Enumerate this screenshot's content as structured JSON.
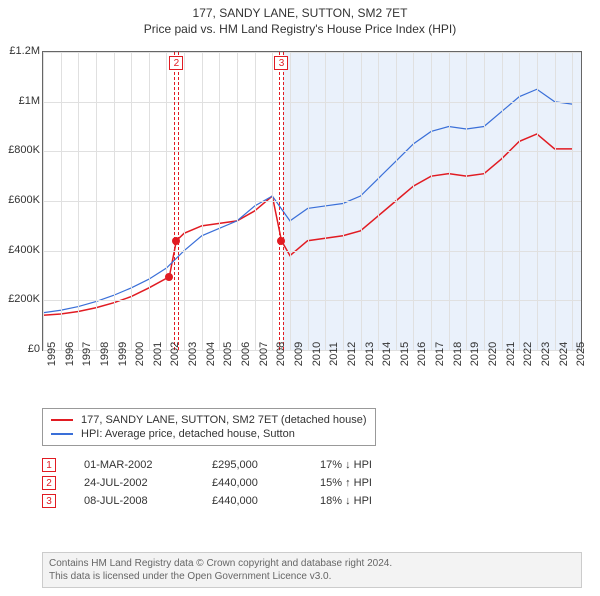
{
  "title": "177, SANDY LANE, SUTTON, SM2 7ET",
  "subtitle": "Price paid vs. HM Land Registry's House Price Index (HPI)",
  "chart": {
    "type": "line",
    "background_color": "#ffffff",
    "grid_color": "#e0e0e0",
    "border_color": "#666666",
    "x": {
      "min": 1995,
      "max": 2025.5,
      "ticks": [
        1995,
        1996,
        1997,
        1998,
        1999,
        2000,
        2001,
        2002,
        2003,
        2004,
        2005,
        2006,
        2007,
        2008,
        2009,
        2010,
        2011,
        2012,
        2013,
        2014,
        2015,
        2016,
        2017,
        2018,
        2019,
        2020,
        2021,
        2022,
        2023,
        2024,
        2025
      ]
    },
    "y": {
      "min": 0,
      "max": 1200000,
      "ticks": [
        0,
        200000,
        400000,
        600000,
        800000,
        1000000,
        1200000
      ],
      "tick_labels": [
        "£0",
        "£200K",
        "£400K",
        "£600K",
        "£800K",
        "£1M",
        "£1.2M"
      ]
    },
    "shaded_region": {
      "from_x": 2008.6,
      "to_x": 2025.5,
      "fill": "#eaf1fb"
    },
    "series": [
      {
        "name": "price_paid",
        "label": "177, SANDY LANE, SUTTON, SM2 7ET (detached house)",
        "color": "#e11b22",
        "line_width": 1.5,
        "points": [
          [
            1995,
            140000
          ],
          [
            1996,
            145000
          ],
          [
            1997,
            155000
          ],
          [
            1998,
            170000
          ],
          [
            1999,
            190000
          ],
          [
            2000,
            215000
          ],
          [
            2001,
            250000
          ],
          [
            2002.16,
            295000
          ],
          [
            2002.56,
            440000
          ],
          [
            2003,
            470000
          ],
          [
            2004,
            500000
          ],
          [
            2005,
            510000
          ],
          [
            2006,
            520000
          ],
          [
            2007,
            560000
          ],
          [
            2008,
            620000
          ],
          [
            2008.52,
            440000
          ],
          [
            2009,
            380000
          ],
          [
            2010,
            440000
          ],
          [
            2011,
            450000
          ],
          [
            2012,
            460000
          ],
          [
            2013,
            480000
          ],
          [
            2014,
            540000
          ],
          [
            2015,
            600000
          ],
          [
            2016,
            660000
          ],
          [
            2017,
            700000
          ],
          [
            2018,
            710000
          ],
          [
            2019,
            700000
          ],
          [
            2020,
            710000
          ],
          [
            2021,
            770000
          ],
          [
            2022,
            840000
          ],
          [
            2023,
            870000
          ],
          [
            2024,
            810000
          ],
          [
            2025,
            810000
          ]
        ]
      },
      {
        "name": "hpi",
        "label": "HPI: Average price, detached house, Sutton",
        "color": "#3a6fd8",
        "line_width": 1.2,
        "points": [
          [
            1995,
            150000
          ],
          [
            1996,
            160000
          ],
          [
            1997,
            175000
          ],
          [
            1998,
            195000
          ],
          [
            1999,
            220000
          ],
          [
            2000,
            250000
          ],
          [
            2001,
            285000
          ],
          [
            2002,
            330000
          ],
          [
            2003,
            400000
          ],
          [
            2004,
            460000
          ],
          [
            2005,
            490000
          ],
          [
            2006,
            520000
          ],
          [
            2007,
            580000
          ],
          [
            2008,
            620000
          ],
          [
            2009,
            520000
          ],
          [
            2010,
            570000
          ],
          [
            2011,
            580000
          ],
          [
            2012,
            590000
          ],
          [
            2013,
            620000
          ],
          [
            2014,
            690000
          ],
          [
            2015,
            760000
          ],
          [
            2016,
            830000
          ],
          [
            2017,
            880000
          ],
          [
            2018,
            900000
          ],
          [
            2019,
            890000
          ],
          [
            2020,
            900000
          ],
          [
            2021,
            960000
          ],
          [
            2022,
            1020000
          ],
          [
            2023,
            1050000
          ],
          [
            2024,
            1000000
          ],
          [
            2025,
            990000
          ]
        ]
      }
    ],
    "markers": [
      {
        "n": "1",
        "x": 2002.16,
        "y": 295000,
        "color": "#e11b22"
      },
      {
        "n": "2",
        "x": 2002.56,
        "y": 440000,
        "color": "#e11b22"
      },
      {
        "n": "3",
        "x": 2008.52,
        "y": 440000,
        "color": "#e11b22"
      }
    ],
    "callouts": [
      {
        "n": "2",
        "x": 2002.56,
        "color": "#e11b22"
      },
      {
        "n": "3",
        "x": 2008.52,
        "color": "#e11b22"
      }
    ]
  },
  "legend": {
    "items": [
      {
        "color": "#e11b22",
        "label": "177, SANDY LANE, SUTTON, SM2 7ET (detached house)"
      },
      {
        "color": "#3a6fd8",
        "label": "HPI: Average price, detached house, Sutton"
      }
    ]
  },
  "events": [
    {
      "n": "1",
      "color": "#e11b22",
      "date": "01-MAR-2002",
      "price": "£295,000",
      "delta": "17% ↓ HPI"
    },
    {
      "n": "2",
      "color": "#e11b22",
      "date": "24-JUL-2002",
      "price": "£440,000",
      "delta": "15% ↑ HPI"
    },
    {
      "n": "3",
      "color": "#e11b22",
      "date": "08-JUL-2008",
      "price": "£440,000",
      "delta": "18% ↓ HPI"
    }
  ],
  "attribution": {
    "line1": "Contains HM Land Registry data © Crown copyright and database right 2024.",
    "line2": "This data is licensed under the Open Government Licence v3.0."
  }
}
